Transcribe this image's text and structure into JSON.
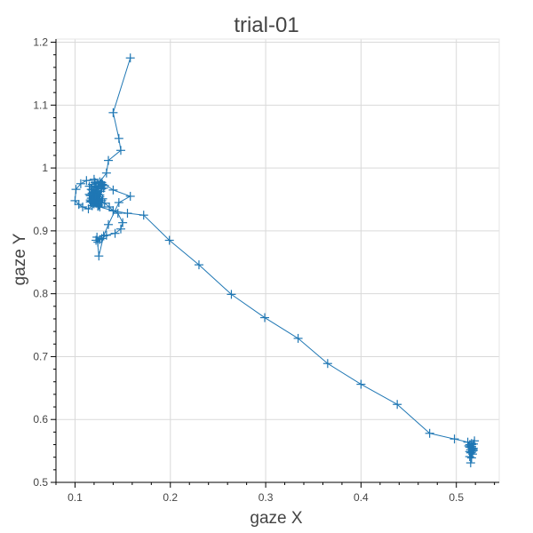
{
  "chart_data": {
    "type": "line",
    "title": "trial-01",
    "xlabel": "gaze X",
    "ylabel": "gaze Y",
    "xlim": [
      0.08,
      0.545
    ],
    "ylim": [
      0.5,
      1.205
    ],
    "x_ticks": [
      0.1,
      0.2,
      0.3,
      0.4,
      0.5
    ],
    "x_tick_labels": [
      "0.1",
      "0.2",
      "0.3",
      "0.4",
      "0.5"
    ],
    "y_ticks": [
      0.5,
      0.6,
      0.7,
      0.8,
      0.9,
      1.0,
      1.1,
      1.2
    ],
    "y_tick_labels": [
      "0.5",
      "0.6",
      "0.7",
      "0.8",
      "0.9",
      "1",
      "1.1",
      "1.2"
    ],
    "grid": true,
    "marker": "cross",
    "line_color": "#1f77b4",
    "series": [
      {
        "x": [
          0.158,
          0.14,
          0.146,
          0.148,
          0.135,
          0.133,
          0.126,
          0.124,
          0.129,
          0.122,
          0.12,
          0.118,
          0.121,
          0.124,
          0.119,
          0.116,
          0.12,
          0.123,
          0.125,
          0.128,
          0.131,
          0.127,
          0.122,
          0.118,
          0.115,
          0.117,
          0.121,
          0.124,
          0.126,
          0.123,
          0.12,
          0.118,
          0.116,
          0.119,
          0.122,
          0.125,
          0.128,
          0.126,
          0.122,
          0.119,
          0.117,
          0.12,
          0.124,
          0.127,
          0.129,
          0.126,
          0.123,
          0.12,
          0.118,
          0.121,
          0.125,
          0.131,
          0.136,
          0.14,
          0.145,
          0.15,
          0.148,
          0.142,
          0.133,
          0.128,
          0.122,
          0.124,
          0.126,
          0.123,
          0.125,
          0.13,
          0.135,
          0.146,
          0.158,
          0.14,
          0.128,
          0.12,
          0.112,
          0.106,
          0.101,
          0.1,
          0.104,
          0.108,
          0.114,
          0.118,
          0.116,
          0.119,
          0.122,
          0.12,
          0.117,
          0.115,
          0.118,
          0.121,
          0.124,
          0.127,
          0.13,
          0.127,
          0.124,
          0.121,
          0.119,
          0.122,
          0.126,
          0.14,
          0.155,
          0.172,
          0.199,
          0.23,
          0.264,
          0.299,
          0.334,
          0.365,
          0.4,
          0.438,
          0.472,
          0.498,
          0.512,
          0.516,
          0.514,
          0.518,
          0.515,
          0.517,
          0.513,
          0.516,
          0.519,
          0.514,
          0.517,
          0.515,
          0.516,
          0.518,
          0.514,
          0.516,
          0.517,
          0.515,
          0.516,
          0.514,
          0.518,
          0.516
        ],
        "y": [
          1.175,
          1.088,
          1.047,
          1.028,
          1.012,
          0.992,
          0.978,
          0.97,
          0.974,
          0.968,
          0.962,
          0.957,
          0.951,
          0.947,
          0.944,
          0.949,
          0.954,
          0.959,
          0.963,
          0.967,
          0.972,
          0.975,
          0.97,
          0.965,
          0.958,
          0.952,
          0.946,
          0.94,
          0.944,
          0.949,
          0.955,
          0.96,
          0.956,
          0.95,
          0.945,
          0.941,
          0.948,
          0.954,
          0.958,
          0.953,
          0.947,
          0.943,
          0.939,
          0.945,
          0.951,
          0.957,
          0.961,
          0.966,
          0.96,
          0.955,
          0.95,
          0.944,
          0.938,
          0.932,
          0.928,
          0.913,
          0.903,
          0.896,
          0.893,
          0.888,
          0.885,
          0.882,
          0.886,
          0.89,
          0.86,
          0.892,
          0.91,
          0.945,
          0.955,
          0.965,
          0.977,
          0.982,
          0.98,
          0.975,
          0.966,
          0.948,
          0.942,
          0.938,
          0.935,
          0.94,
          0.946,
          0.951,
          0.955,
          0.961,
          0.966,
          0.971,
          0.974,
          0.977,
          0.975,
          0.972,
          0.968,
          0.963,
          0.958,
          0.953,
          0.948,
          0.944,
          0.938,
          0.932,
          0.928,
          0.925,
          0.885,
          0.846,
          0.799,
          0.762,
          0.729,
          0.689,
          0.656,
          0.624,
          0.578,
          0.569,
          0.564,
          0.56,
          0.556,
          0.551,
          0.547,
          0.553,
          0.558,
          0.562,
          0.566,
          0.549,
          0.545,
          0.552,
          0.557,
          0.561,
          0.541,
          0.539,
          0.55,
          0.531,
          0.555,
          0.56,
          0.554,
          0.548
        ]
      }
    ]
  }
}
